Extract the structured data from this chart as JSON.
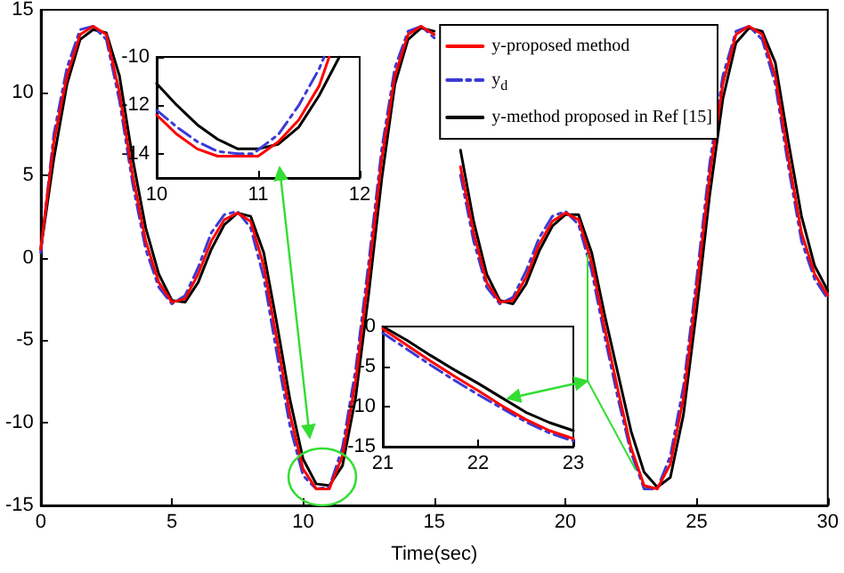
{
  "chart_data": [
    {
      "type": "line",
      "xlabel": "Time(sec)",
      "xlim": [
        0,
        30
      ],
      "ylim": [
        -15,
        15
      ],
      "xticks": [
        0,
        5,
        10,
        15,
        20,
        25,
        30
      ],
      "yticks": [
        -15,
        -10,
        -5,
        0,
        5,
        10,
        15
      ],
      "grid": false,
      "legend": "top right",
      "x": [
        0,
        0.5,
        1,
        1.5,
        2,
        2.5,
        3,
        3.5,
        4,
        4.5,
        5,
        5.5,
        6,
        6.5,
        7,
        7.5,
        8,
        8.5,
        9,
        9.5,
        10,
        10.5,
        11,
        11.5,
        12,
        12.5,
        13,
        13.5,
        14,
        14.5,
        15,
        15.5,
        16,
        16.5,
        17,
        17.5,
        18,
        18.5,
        19,
        19.5,
        20,
        20.5,
        21,
        21.5,
        22,
        22.5,
        23,
        23.5,
        24,
        24.5,
        25,
        25.5,
        26,
        26.5,
        27,
        27.5,
        28,
        28.5,
        29,
        29.5,
        30
      ],
      "series": [
        {
          "name": "y-proposed method",
          "color": "#ff0000",
          "line_style": "solid",
          "values": [
            0.5,
            7,
            11,
            13.5,
            14,
            13.5,
            10,
            5,
            1,
            -1.5,
            -2.7,
            -2.5,
            -1,
            1,
            2.3,
            2.7,
            2.2,
            -0.5,
            -5,
            -9.5,
            -12.8,
            -14,
            -14,
            -12,
            -7.5,
            -1,
            6,
            11,
            13.5,
            14,
            13.5,
            null,
            5.5,
            1.5,
            -1.5,
            -2.7,
            -2.6,
            -1.2,
            0.8,
            2.2,
            2.7,
            2.3,
            -0.3,
            -4.3,
            -8,
            -11.5,
            -13.8,
            -14,
            -12.5,
            -8.5,
            -2,
            5,
            10.5,
            13.5,
            14,
            13.5,
            11,
            6,
            1.5,
            -1,
            -2.3
          ]
        },
        {
          "name": "y$_{d}$",
          "color": "#3b3bd6",
          "line_style": "dashed",
          "values": [
            0.3,
            7.5,
            11.5,
            13.8,
            14,
            13.2,
            9.5,
            4.5,
            0.5,
            -1.8,
            -2.8,
            -2.3,
            -0.6,
            1.5,
            2.6,
            2.8,
            1.8,
            -1.2,
            -5.8,
            -10.2,
            -13.2,
            -14,
            -13.9,
            -11.5,
            -6.8,
            -0.3,
            6.6,
            11.5,
            13.7,
            14,
            13.3,
            null,
            5,
            1,
            -1.8,
            -2.8,
            -2.4,
            -0.8,
            1.2,
            2.5,
            2.8,
            2,
            -0.8,
            -4.8,
            -8.5,
            -11.8,
            -14,
            -14,
            -12,
            -7.8,
            -1.3,
            5.7,
            11,
            13.7,
            14,
            13.2,
            10.5,
            5.5,
            1,
            -1.3,
            -2.5
          ]
        },
        {
          "name": "y-method proposed in Ref [15]",
          "color": "#000000",
          "line_style": "solid",
          "values": [
            0.5,
            6,
            10.5,
            13.2,
            13.8,
            13.6,
            11,
            6,
            1.8,
            -1,
            -2.6,
            -2.7,
            -1.5,
            0.5,
            2,
            2.7,
            2.5,
            0.3,
            -4,
            -8.6,
            -12.2,
            -13.7,
            -13.8,
            -12.6,
            -8.5,
            -2.2,
            4.8,
            10.5,
            13.2,
            13.9,
            13.7,
            null,
            6.5,
            2.2,
            -1,
            -2.6,
            -2.8,
            -1.6,
            0.4,
            1.9,
            2.6,
            2.6,
            0.3,
            -3.5,
            -7,
            -10.5,
            -13,
            -13.9,
            -13.3,
            -9.5,
            -3.2,
            3.8,
            9.6,
            13,
            13.9,
            13.7,
            11.8,
            7,
            2.5,
            -0.5,
            -2
          ]
        }
      ]
    },
    {
      "type": "line",
      "xlim": [
        10,
        12
      ],
      "ylim": [
        -15,
        -10
      ],
      "xticks": [
        10,
        11,
        12
      ],
      "yticks": [
        -10,
        -12,
        -14
      ],
      "grid": false,
      "series": [
        {
          "color": "#ff0000",
          "line_style": "solid",
          "x": [
            10,
            10.2,
            10.4,
            10.6,
            10.8,
            11,
            11.2,
            11.4,
            11.6,
            11.7
          ],
          "values": [
            -12.4,
            -13.2,
            -13.8,
            -14.1,
            -14.1,
            -14.1,
            -13.5,
            -12.6,
            -11.2,
            -10
          ]
        },
        {
          "color": "#3b3bd6",
          "line_style": "dashed",
          "x": [
            10,
            10.2,
            10.4,
            10.6,
            10.8,
            10.95,
            11.2,
            11.4,
            11.6,
            11.65
          ],
          "values": [
            -12.2,
            -12.9,
            -13.5,
            -13.9,
            -14,
            -14,
            -13.2,
            -12,
            -10.5,
            -10
          ]
        },
        {
          "color": "#000000",
          "line_style": "solid",
          "x": [
            10,
            10.2,
            10.4,
            10.6,
            10.8,
            11,
            11.2,
            11.4,
            11.6,
            11.8
          ],
          "values": [
            -11.1,
            -12,
            -12.8,
            -13.4,
            -13.8,
            -13.8,
            -13.6,
            -12.9,
            -11.6,
            -10
          ]
        }
      ]
    },
    {
      "type": "line",
      "xlim": [
        21,
        23
      ],
      "ylim": [
        -15,
        0
      ],
      "xticks": [
        21,
        22,
        23
      ],
      "yticks": [
        0,
        -5,
        -10,
        -15
      ],
      "grid": false,
      "series": [
        {
          "color": "#ff0000",
          "line_style": "solid",
          "x": [
            21,
            21.25,
            21.5,
            21.75,
            22,
            22.25,
            22.5,
            22.75,
            23
          ],
          "values": [
            -0.3,
            -2.3,
            -4.3,
            -6.2,
            -8,
            -9.9,
            -11.6,
            -13,
            -14
          ]
        },
        {
          "color": "#3b3bd6",
          "line_style": "dashed",
          "x": [
            21,
            21.25,
            21.5,
            21.75,
            22,
            22.25,
            22.5,
            22.75,
            23
          ],
          "values": [
            -0.8,
            -2.8,
            -4.8,
            -6.7,
            -8.5,
            -10.2,
            -11.9,
            -13.3,
            -14.3
          ]
        },
        {
          "color": "#000000",
          "line_style": "solid",
          "x": [
            21,
            21.25,
            21.5,
            21.75,
            22,
            22.25,
            22.5,
            22.75,
            23
          ],
          "values": [
            0,
            -1.7,
            -3.6,
            -5.4,
            -7.1,
            -8.9,
            -10.7,
            -12,
            -13
          ]
        }
      ]
    }
  ]
}
